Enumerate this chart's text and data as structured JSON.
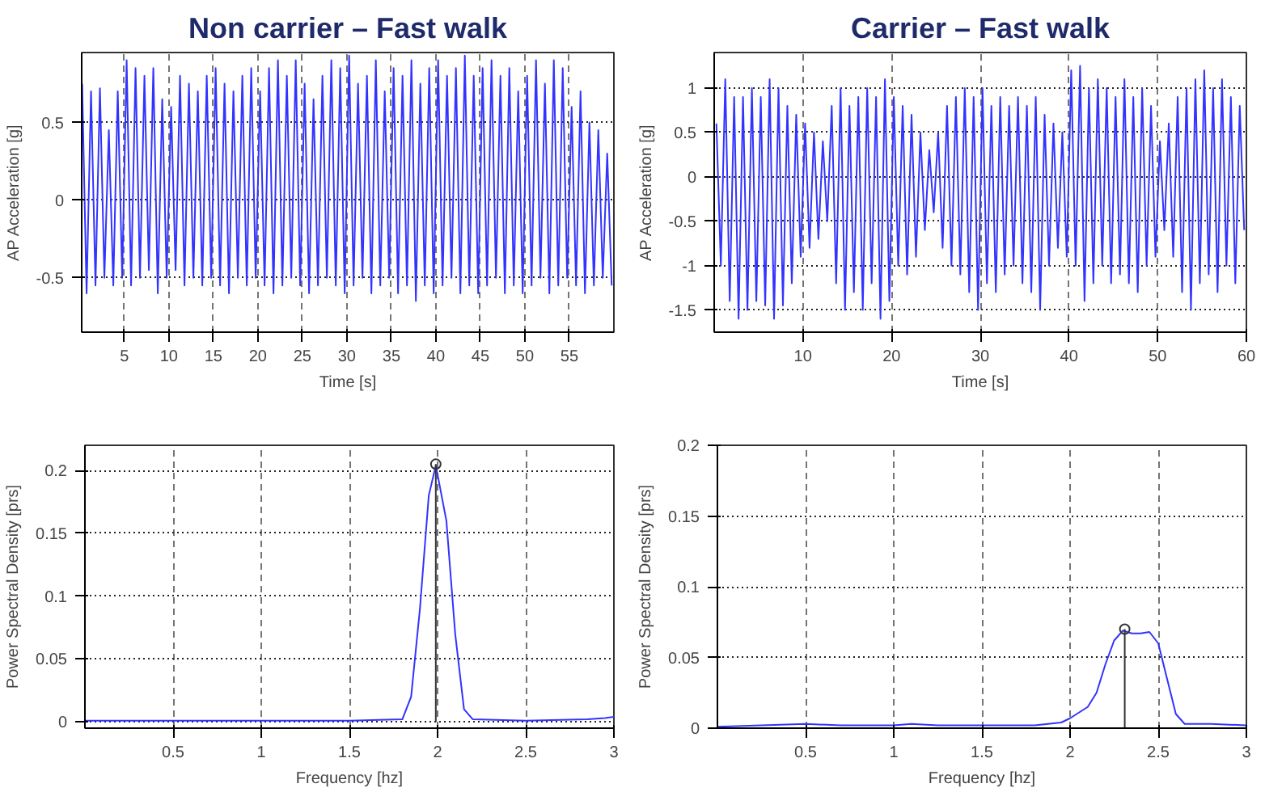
{
  "chart_data": [
    {
      "type": "line",
      "title": "Non carrier – Fast walk",
      "xlabel": "Time [s]",
      "ylabel": "AP Acceleration [g]",
      "xlim": [
        0.2,
        60
      ],
      "ylim": [
        -0.85,
        0.95
      ],
      "xticks": [
        5,
        10,
        15,
        20,
        25,
        30,
        35,
        40,
        45,
        50,
        55
      ],
      "yticks": [
        -0.5,
        0,
        0.5
      ],
      "grid": true,
      "series": [
        {
          "color": "#3333ff",
          "x": [
            0.25,
            0.75,
            1.25,
            1.75,
            2.25,
            2.75,
            3.25,
            3.75,
            4.25,
            4.75,
            5.25,
            5.75,
            6.25,
            6.75,
            7.25,
            7.75,
            8.25,
            8.75,
            9.25,
            9.75,
            10.25,
            10.75,
            11.25,
            11.75,
            12.25,
            12.75,
            13.25,
            13.75,
            14.25,
            14.75,
            15.25,
            15.75,
            16.25,
            16.75,
            17.25,
            17.75,
            18.25,
            18.75,
            19.25,
            19.75,
            20.25,
            20.75,
            21.25,
            21.75,
            22.25,
            22.75,
            23.25,
            23.75,
            24.25,
            24.75,
            25.25,
            25.75,
            26.25,
            26.75,
            27.25,
            27.75,
            28.25,
            28.75,
            29.25,
            29.75,
            30.25,
            30.75,
            31.25,
            31.75,
            32.25,
            32.75,
            33.25,
            33.75,
            34.25,
            34.75,
            35.25,
            35.75,
            36.25,
            36.75,
            37.25,
            37.75,
            38.25,
            38.75,
            39.25,
            39.75,
            40.25,
            40.75,
            41.25,
            41.75,
            42.25,
            42.75,
            43.25,
            43.75,
            44.25,
            44.75,
            45.25,
            45.75,
            46.25,
            46.75,
            47.25,
            47.75,
            48.25,
            48.75,
            49.25,
            49.75,
            50.25,
            50.75,
            51.25,
            51.75,
            52.25,
            52.75,
            53.25,
            53.75,
            54.25,
            54.75,
            55.25,
            55.75,
            56.25,
            56.75,
            57.25,
            57.75,
            58.25,
            58.75,
            59.25,
            59.75
          ],
          "values": [
            0.75,
            -0.6,
            0.7,
            -0.55,
            0.72,
            -0.5,
            0.45,
            -0.55,
            0.7,
            -0.5,
            0.9,
            -0.55,
            0.85,
            -0.5,
            0.8,
            -0.45,
            0.85,
            -0.6,
            0.65,
            -0.5,
            0.6,
            -0.45,
            0.8,
            -0.55,
            0.75,
            -0.5,
            0.7,
            -0.55,
            0.8,
            -0.5,
            0.85,
            -0.55,
            0.75,
            -0.6,
            0.7,
            -0.5,
            0.8,
            -0.55,
            0.85,
            -0.5,
            0.7,
            -0.55,
            0.85,
            -0.6,
            0.9,
            -0.55,
            0.8,
            -0.5,
            0.9,
            -0.55,
            0.75,
            -0.6,
            0.65,
            -0.55,
            0.8,
            -0.5,
            0.9,
            -0.55,
            0.85,
            -0.6,
            0.93,
            -0.55,
            0.75,
            -0.5,
            0.8,
            -0.6,
            0.9,
            -0.55,
            0.7,
            -0.5,
            0.85,
            -0.6,
            0.8,
            -0.55,
            0.9,
            -0.65,
            0.75,
            -0.55,
            0.85,
            -0.6,
            0.9,
            -0.55,
            0.8,
            -0.5,
            0.85,
            -0.6,
            0.93,
            -0.55,
            0.8,
            -0.6,
            0.85,
            -0.55,
            0.9,
            -0.5,
            0.8,
            -0.6,
            0.85,
            -0.55,
            0.7,
            -0.6,
            0.8,
            -0.55,
            0.9,
            -0.5,
            0.75,
            -0.6,
            0.9,
            -0.55,
            0.85,
            -0.5,
            0.6,
            -0.55,
            0.7,
            -0.6,
            0.5,
            -0.55,
            0.45,
            -0.5,
            0.3,
            -0.55
          ]
        }
      ]
    },
    {
      "type": "line",
      "title": "Carrier – Fast walk",
      "xlabel": "Time [s]",
      "ylabel": "AP Acceleration [g]",
      "xlim": [
        0,
        60
      ],
      "ylim": [
        -1.75,
        1.4
      ],
      "xticks": [
        10,
        20,
        30,
        40,
        50,
        60
      ],
      "yticks": [
        -1.5,
        -1,
        -0.5,
        0,
        0.5,
        1
      ],
      "grid": true,
      "series": [
        {
          "color": "#3333ff",
          "x": [
            0.25,
            0.75,
            1.25,
            1.75,
            2.25,
            2.75,
            3.25,
            3.75,
            4.25,
            4.75,
            5.25,
            5.75,
            6.25,
            6.75,
            7.25,
            7.75,
            8.25,
            8.75,
            9.25,
            9.75,
            10.25,
            10.75,
            11.25,
            11.75,
            12.25,
            12.75,
            13.25,
            13.75,
            14.25,
            14.75,
            15.25,
            15.75,
            16.25,
            16.75,
            17.25,
            17.75,
            18.25,
            18.75,
            19.25,
            19.75,
            20.25,
            20.75,
            21.25,
            21.75,
            22.25,
            22.75,
            23.25,
            23.75,
            24.25,
            24.75,
            25.25,
            25.75,
            26.25,
            26.75,
            27.25,
            27.75,
            28.25,
            28.75,
            29.25,
            29.75,
            30.25,
            30.75,
            31.25,
            31.75,
            32.25,
            32.75,
            33.25,
            33.75,
            34.25,
            34.75,
            35.25,
            35.75,
            36.25,
            36.75,
            37.25,
            37.75,
            38.25,
            38.75,
            39.25,
            39.75,
            40.25,
            40.75,
            41.25,
            41.75,
            42.25,
            42.75,
            43.25,
            43.75,
            44.25,
            44.75,
            45.25,
            45.75,
            46.25,
            46.75,
            47.25,
            47.75,
            48.25,
            48.75,
            49.25,
            49.75,
            50.25,
            50.75,
            51.25,
            51.75,
            52.25,
            52.75,
            53.25,
            53.75,
            54.25,
            54.75,
            55.25,
            55.75,
            56.25,
            56.75,
            57.25,
            57.75,
            58.25,
            58.75,
            59.25,
            59.75
          ],
          "values": [
            0.6,
            -1.0,
            1.1,
            -1.4,
            0.9,
            -1.6,
            0.9,
            -1.5,
            1.0,
            -1.4,
            0.9,
            -1.45,
            1.1,
            -1.6,
            1.0,
            -1.45,
            0.8,
            -1.2,
            0.7,
            -0.9,
            0.6,
            -0.8,
            0.5,
            -0.7,
            0.4,
            -0.5,
            0.8,
            -1.2,
            1.0,
            -1.5,
            0.8,
            -1.3,
            0.9,
            -1.5,
            1.0,
            -1.2,
            0.9,
            -1.6,
            1.1,
            -1.4,
            0.9,
            -1.0,
            0.8,
            -1.1,
            0.7,
            -0.9,
            0.5,
            -0.6,
            0.3,
            -0.4,
            0.5,
            -0.8,
            0.8,
            -1.0,
            0.9,
            -1.1,
            1.0,
            -1.3,
            0.9,
            -1.5,
            1.0,
            -1.2,
            0.8,
            -1.3,
            0.9,
            -1.1,
            0.8,
            -1.0,
            0.9,
            -1.2,
            0.8,
            -1.3,
            0.9,
            -1.5,
            0.7,
            -1.0,
            0.6,
            -0.8,
            0.5,
            -0.9,
            1.2,
            -1.0,
            1.25,
            -1.4,
            1.0,
            -1.2,
            1.1,
            -1.0,
            1.0,
            -1.2,
            0.9,
            -1.1,
            1.1,
            -1.2,
            0.9,
            -1.3,
            1.0,
            -1.0,
            0.8,
            -0.9,
            0.4,
            -0.6,
            0.6,
            -0.9,
            0.9,
            -1.3,
            1.0,
            -1.5,
            1.1,
            -1.2,
            1.2,
            -1.1,
            1.0,
            -1.3,
            1.1,
            -1.0,
            0.9,
            -1.2,
            0.8,
            -0.6
          ]
        }
      ]
    },
    {
      "type": "line",
      "xlabel": "Frequency [hz]",
      "ylabel": "Power Spectral Density [prs]",
      "xlim": [
        0,
        3
      ],
      "ylim": [
        -0.005,
        0.22
      ],
      "xticks": [
        0.5,
        1,
        1.5,
        2,
        2.5,
        3
      ],
      "yticks": [
        0,
        0.05,
        0.1,
        0.15,
        0.2
      ],
      "grid": true,
      "series": [
        {
          "color": "#3333ff",
          "x": [
            0,
            0.5,
            1,
            1.5,
            1.8,
            1.85,
            1.9,
            1.95,
            1.99,
            2.05,
            2.1,
            2.15,
            2.2,
            2.5,
            2.85,
            2.95,
            3
          ],
          "values": [
            0.001,
            0.001,
            0.001,
            0.001,
            0.002,
            0.02,
            0.09,
            0.18,
            0.204,
            0.16,
            0.07,
            0.01,
            0.002,
            0.001,
            0.002,
            0.003,
            0.004
          ]
        },
        {
          "type": "lollipop",
          "marker": "circle",
          "color": "#333333",
          "x": [
            1.99
          ],
          "values": [
            0.205
          ]
        }
      ]
    },
    {
      "type": "line",
      "xlabel": "Frequency [hz]",
      "ylabel": "Power Spectral Density [prs]",
      "xlim": [
        0,
        3
      ],
      "ylim": [
        0,
        0.2
      ],
      "xticks": [
        0.5,
        1,
        1.5,
        2,
        2.5,
        3
      ],
      "yticks": [
        0,
        0.05,
        0.1,
        0.15,
        0.2
      ],
      "grid": true,
      "series": [
        {
          "color": "#3333ff",
          "x": [
            0,
            0.5,
            0.7,
            1,
            1.1,
            1.25,
            1.5,
            1.8,
            1.95,
            2.0,
            2.1,
            2.15,
            2.2,
            2.25,
            2.3,
            2.35,
            2.4,
            2.45,
            2.5,
            2.55,
            2.6,
            2.65,
            2.8,
            3
          ],
          "values": [
            0.001,
            0.003,
            0.002,
            0.002,
            0.003,
            0.002,
            0.002,
            0.002,
            0.004,
            0.007,
            0.015,
            0.025,
            0.045,
            0.062,
            0.069,
            0.067,
            0.067,
            0.068,
            0.06,
            0.035,
            0.01,
            0.003,
            0.003,
            0.002
          ]
        },
        {
          "type": "lollipop",
          "marker": "circle",
          "color": "#333333",
          "x": [
            2.31
          ],
          "values": [
            0.07
          ]
        }
      ]
    }
  ]
}
